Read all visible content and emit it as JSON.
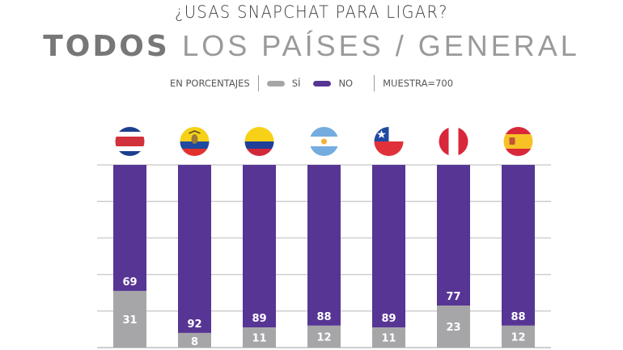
{
  "header": {
    "title": "¿USAS SNAPCHAT PARA LIGAR?",
    "subtitle_bold": "TODOS",
    "subtitle_light": "LOS PAÍSES / GENERAL"
  },
  "legend": {
    "unit_label": "EN PORCENTAJES",
    "items": [
      {
        "label": "SÍ",
        "color": "#a6a6a8"
      },
      {
        "label": "NO",
        "color": "#573594"
      }
    ],
    "sample_label": "MUESTRA=700"
  },
  "colors": {
    "si": "#a6a6a8",
    "no": "#573594",
    "grid": "#cfcfcf",
    "label": "#ffffff"
  },
  "chart_data": {
    "type": "bar",
    "stacked": true,
    "title": "¿USAS SNAPCHAT PARA LIGAR?",
    "subtitle": "TODOS LOS PAÍSES / GENERAL",
    "xlabel": "",
    "ylabel": "EN PORCENTAJES",
    "ylim": [
      0,
      100
    ],
    "grid": true,
    "gridlines": [
      0,
      20,
      40,
      60,
      80,
      100
    ],
    "legend_position": "top",
    "categories": [
      "Costa Rica",
      "Ecuador",
      "Colombia",
      "Argentina",
      "Chile",
      "Perú",
      "España"
    ],
    "category_icons": [
      "flag-costa-rica",
      "flag-ecuador",
      "flag-colombia",
      "flag-argentina",
      "flag-chile",
      "flag-peru",
      "flag-spain"
    ],
    "series": [
      {
        "name": "SÍ",
        "values": [
          31,
          8,
          11,
          12,
          11,
          23,
          12
        ]
      },
      {
        "name": "NO",
        "values": [
          69,
          92,
          89,
          88,
          89,
          77,
          88
        ]
      }
    ],
    "sample": "MUESTRA=700"
  }
}
